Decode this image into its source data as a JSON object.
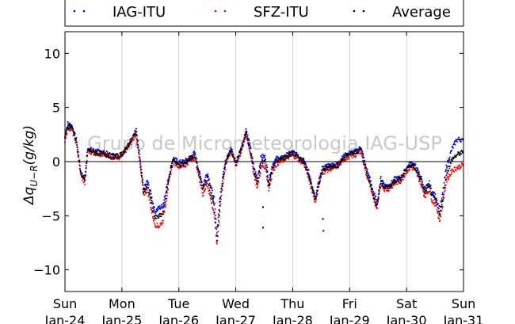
{
  "chart_data": {
    "type": "scatter",
    "title": "",
    "ylabel": "Δq_{U−R}(g/kg)",
    "ylabel_main": "Δq",
    "ylabel_sub": "U−R",
    "ylabel_unit": "(g/kg)",
    "xlabel": "",
    "ylim": [
      -12,
      12
    ],
    "yticks": [
      -10,
      -5,
      0,
      5,
      10
    ],
    "yticklabels": [
      "−10",
      "−5",
      "0",
      "5",
      "10"
    ],
    "xlim": [
      0,
      7
    ],
    "xticks": [
      {
        "x": 0,
        "day": "Sun",
        "date": "Jan-24"
      },
      {
        "x": 1,
        "day": "Mon",
        "date": "Jan-25"
      },
      {
        "x": 2,
        "day": "Tue",
        "date": "Jan-26"
      },
      {
        "x": 3,
        "day": "Wed",
        "date": "Jan-27"
      },
      {
        "x": 4,
        "day": "Thu",
        "date": "Jan-28"
      },
      {
        "x": 5,
        "day": "Fri",
        "date": "Jan-29"
      },
      {
        "x": 6,
        "day": "Sat",
        "date": "Jan-30"
      },
      {
        "x": 7,
        "day": "Sun",
        "date": "Jan-31"
      }
    ],
    "grid": "vertical",
    "legend_position": "top",
    "watermark": "Grupo de Micrometeorologia IAG-USP",
    "zero_line": true,
    "series": [
      {
        "name": "IAG-ITU",
        "color": "#0000ff",
        "points": [
          [
            0.0,
            2.4
          ],
          [
            0.05,
            3.5
          ],
          [
            0.12,
            3.3
          ],
          [
            0.2,
            2.0
          ],
          [
            0.28,
            -1.0
          ],
          [
            0.35,
            -1.6
          ],
          [
            0.4,
            1.2
          ],
          [
            0.5,
            1.0
          ],
          [
            0.6,
            0.9
          ],
          [
            0.7,
            0.8
          ],
          [
            0.8,
            0.6
          ],
          [
            0.95,
            0.5
          ],
          [
            1.05,
            1.0
          ],
          [
            1.15,
            1.9
          ],
          [
            1.25,
            2.9
          ],
          [
            1.32,
            0.2
          ],
          [
            1.38,
            -2.6
          ],
          [
            1.45,
            -1.8
          ],
          [
            1.52,
            -3.2
          ],
          [
            1.58,
            -4.6
          ],
          [
            1.65,
            -4.3
          ],
          [
            1.72,
            -4.1
          ],
          [
            1.78,
            -2.5
          ],
          [
            1.84,
            -1.0
          ],
          [
            1.9,
            0.3
          ],
          [
            2.0,
            -0.1
          ],
          [
            2.1,
            0.0
          ],
          [
            2.2,
            0.4
          ],
          [
            2.28,
            0.8
          ],
          [
            2.35,
            -0.8
          ],
          [
            2.42,
            -2.2
          ],
          [
            2.5,
            -1.0
          ],
          [
            2.55,
            -2.0
          ],
          [
            2.62,
            -3.5
          ],
          [
            2.67,
            -6.5
          ],
          [
            2.72,
            -3.5
          ],
          [
            2.78,
            -1.0
          ],
          [
            2.85,
            0.6
          ],
          [
            2.92,
            1.2
          ],
          [
            3.0,
            -0.1
          ],
          [
            3.08,
            1.0
          ],
          [
            3.15,
            2.2
          ],
          [
            3.18,
            3.0
          ],
          [
            3.25,
            1.5
          ],
          [
            3.32,
            -0.6
          ],
          [
            3.38,
            -1.6
          ],
          [
            3.45,
            0.5
          ],
          [
            3.52,
            0.4
          ],
          [
            3.58,
            -1.8
          ],
          [
            3.65,
            -0.2
          ],
          [
            3.72,
            0.3
          ],
          [
            3.8,
            0.3
          ],
          [
            3.9,
            0.6
          ],
          [
            4.0,
            0.9
          ],
          [
            4.1,
            0.5
          ],
          [
            4.2,
            0.2
          ],
          [
            4.28,
            -1.0
          ],
          [
            4.35,
            -2.5
          ],
          [
            4.4,
            -3.4
          ],
          [
            4.45,
            -2.0
          ],
          [
            4.52,
            -0.7
          ],
          [
            4.6,
            -0.4
          ],
          [
            4.7,
            -0.3
          ],
          [
            4.8,
            -0.2
          ],
          [
            4.9,
            0.5
          ],
          [
            5.0,
            0.8
          ],
          [
            5.1,
            0.9
          ],
          [
            5.2,
            1.3
          ],
          [
            5.28,
            -0.4
          ],
          [
            5.35,
            -1.5
          ],
          [
            5.4,
            -2.5
          ],
          [
            5.48,
            -3.8
          ],
          [
            5.55,
            -1.5
          ],
          [
            5.62,
            -2.2
          ],
          [
            5.7,
            -2.2
          ],
          [
            5.8,
            -1.6
          ],
          [
            5.9,
            -1.5
          ],
          [
            6.0,
            -0.6
          ],
          [
            6.08,
            -0.1
          ],
          [
            6.15,
            -0.4
          ],
          [
            6.25,
            -1.4
          ],
          [
            6.32,
            -2.6
          ],
          [
            6.4,
            -2.0
          ],
          [
            6.45,
            -2.8
          ],
          [
            6.52,
            -3.3
          ],
          [
            6.58,
            -4.4
          ],
          [
            6.62,
            -3.5
          ],
          [
            6.7,
            -0.5
          ],
          [
            6.8,
            1.2
          ],
          [
            6.88,
            2.0
          ],
          [
            6.95,
            2.1
          ],
          [
            7.0,
            1.8
          ]
        ]
      },
      {
        "name": "SFZ-ITU",
        "color": "#ff0000",
        "points": [
          [
            0.0,
            2.0
          ],
          [
            0.05,
            3.1
          ],
          [
            0.12,
            3.0
          ],
          [
            0.2,
            1.7
          ],
          [
            0.28,
            -1.3
          ],
          [
            0.35,
            -2.0
          ],
          [
            0.4,
            1.0
          ],
          [
            0.5,
            0.8
          ],
          [
            0.6,
            0.7
          ],
          [
            0.7,
            0.6
          ],
          [
            0.8,
            0.4
          ],
          [
            0.95,
            0.4
          ],
          [
            1.05,
            0.9
          ],
          [
            1.15,
            1.7
          ],
          [
            1.25,
            2.6
          ],
          [
            1.32,
            -0.3
          ],
          [
            1.38,
            -3.0
          ],
          [
            1.45,
            -2.6
          ],
          [
            1.52,
            -4.5
          ],
          [
            1.58,
            -5.8
          ],
          [
            1.65,
            -6.0
          ],
          [
            1.72,
            -5.5
          ],
          [
            1.78,
            -3.5
          ],
          [
            1.84,
            -1.5
          ],
          [
            1.9,
            0.0
          ],
          [
            2.0,
            -0.4
          ],
          [
            2.1,
            -0.4
          ],
          [
            2.2,
            0.1
          ],
          [
            2.28,
            0.4
          ],
          [
            2.35,
            -1.3
          ],
          [
            2.42,
            -3.0
          ],
          [
            2.5,
            -2.0
          ],
          [
            2.55,
            -3.2
          ],
          [
            2.62,
            -4.8
          ],
          [
            2.67,
            -7.8
          ],
          [
            2.72,
            -4.5
          ],
          [
            2.78,
            -1.8
          ],
          [
            2.85,
            0.3
          ],
          [
            2.92,
            0.9
          ],
          [
            3.0,
            -0.4
          ],
          [
            3.08,
            0.7
          ],
          [
            3.15,
            1.9
          ],
          [
            3.18,
            2.6
          ],
          [
            3.25,
            1.0
          ],
          [
            3.32,
            -1.2
          ],
          [
            3.38,
            -2.4
          ],
          [
            3.45,
            -0.5
          ],
          [
            3.52,
            -0.4
          ],
          [
            3.58,
            -2.6
          ],
          [
            3.65,
            -0.8
          ],
          [
            3.72,
            -0.2
          ],
          [
            3.8,
            0.0
          ],
          [
            3.9,
            0.3
          ],
          [
            4.0,
            0.6
          ],
          [
            4.1,
            0.2
          ],
          [
            4.2,
            -0.2
          ],
          [
            4.28,
            -1.5
          ],
          [
            4.35,
            -2.8
          ],
          [
            4.4,
            -3.8
          ],
          [
            4.45,
            -2.4
          ],
          [
            4.52,
            -1.0
          ],
          [
            4.6,
            -0.8
          ],
          [
            4.7,
            -0.6
          ],
          [
            4.8,
            -0.4
          ],
          [
            4.9,
            0.2
          ],
          [
            5.0,
            0.5
          ],
          [
            5.1,
            0.6
          ],
          [
            5.2,
            1.0
          ],
          [
            5.28,
            -0.9
          ],
          [
            5.35,
            -2.0
          ],
          [
            5.4,
            -3.0
          ],
          [
            5.48,
            -4.5
          ],
          [
            5.55,
            -2.0
          ],
          [
            5.62,
            -2.6
          ],
          [
            5.7,
            -2.5
          ],
          [
            5.8,
            -2.0
          ],
          [
            5.9,
            -1.8
          ],
          [
            6.0,
            -0.9
          ],
          [
            6.08,
            -0.5
          ],
          [
            6.15,
            -0.8
          ],
          [
            6.25,
            -2.0
          ],
          [
            6.32,
            -3.2
          ],
          [
            6.4,
            -2.6
          ],
          [
            6.45,
            -3.6
          ],
          [
            6.52,
            -4.0
          ],
          [
            6.58,
            -5.5
          ],
          [
            6.62,
            -4.5
          ],
          [
            6.7,
            -1.8
          ],
          [
            6.8,
            -0.8
          ],
          [
            6.88,
            -0.6
          ],
          [
            6.95,
            -0.4
          ],
          [
            7.0,
            -0.3
          ]
        ]
      },
      {
        "name": "Average",
        "color": "#000000",
        "points": [
          [
            0.0,
            2.2
          ],
          [
            0.05,
            3.3
          ],
          [
            0.12,
            3.2
          ],
          [
            0.2,
            1.9
          ],
          [
            0.28,
            -1.1
          ],
          [
            0.35,
            -1.8
          ],
          [
            0.4,
            1.1
          ],
          [
            0.5,
            0.9
          ],
          [
            0.6,
            0.8
          ],
          [
            0.7,
            0.7
          ],
          [
            0.8,
            0.5
          ],
          [
            0.95,
            0.5
          ],
          [
            1.05,
            1.0
          ],
          [
            1.15,
            1.8
          ],
          [
            1.25,
            2.8
          ],
          [
            1.32,
            -0.1
          ],
          [
            1.38,
            -2.8
          ],
          [
            1.45,
            -2.2
          ],
          [
            1.52,
            -3.8
          ],
          [
            1.58,
            -5.2
          ],
          [
            1.65,
            -5.1
          ],
          [
            1.72,
            -4.8
          ],
          [
            1.78,
            -3.0
          ],
          [
            1.84,
            -1.2
          ],
          [
            1.9,
            0.2
          ],
          [
            2.0,
            -0.3
          ],
          [
            2.1,
            -0.2
          ],
          [
            2.2,
            0.3
          ],
          [
            2.28,
            0.6
          ],
          [
            2.35,
            -1.0
          ],
          [
            2.42,
            -2.6
          ],
          [
            2.5,
            -1.5
          ],
          [
            2.55,
            -2.6
          ],
          [
            2.62,
            -4.1
          ],
          [
            2.67,
            -7.1
          ],
          [
            2.72,
            -4.0
          ],
          [
            2.78,
            -1.4
          ],
          [
            2.85,
            0.5
          ],
          [
            2.92,
            1.0
          ],
          [
            3.0,
            -0.2
          ],
          [
            3.08,
            0.9
          ],
          [
            3.15,
            2.0
          ],
          [
            3.18,
            2.8
          ],
          [
            3.25,
            1.2
          ],
          [
            3.32,
            -0.9
          ],
          [
            3.38,
            -2.0
          ],
          [
            3.45,
            0.0
          ],
          [
            3.52,
            0.0
          ],
          [
            3.58,
            -2.2
          ],
          [
            3.65,
            -0.5
          ],
          [
            3.72,
            0.1
          ],
          [
            3.8,
            0.2
          ],
          [
            3.9,
            0.5
          ],
          [
            4.0,
            0.8
          ],
          [
            4.1,
            0.4
          ],
          [
            4.2,
            0.0
          ],
          [
            4.28,
            -1.2
          ],
          [
            4.35,
            -2.6
          ],
          [
            4.4,
            -3.6
          ],
          [
            4.45,
            -2.2
          ],
          [
            4.52,
            -0.8
          ],
          [
            4.6,
            -0.6
          ],
          [
            4.7,
            -0.4
          ],
          [
            4.8,
            -0.3
          ],
          [
            4.9,
            0.4
          ],
          [
            5.0,
            0.7
          ],
          [
            5.1,
            0.8
          ],
          [
            5.2,
            1.2
          ],
          [
            5.28,
            -0.6
          ],
          [
            5.35,
            -1.8
          ],
          [
            5.4,
            -2.8
          ],
          [
            5.48,
            -4.1
          ],
          [
            5.55,
            -1.8
          ],
          [
            5.62,
            -2.4
          ],
          [
            5.7,
            -2.3
          ],
          [
            5.8,
            -1.8
          ],
          [
            5.9,
            -1.6
          ],
          [
            6.0,
            -0.7
          ],
          [
            6.08,
            -0.3
          ],
          [
            6.15,
            -0.6
          ],
          [
            6.25,
            -1.7
          ],
          [
            6.32,
            -2.9
          ],
          [
            6.4,
            -2.3
          ],
          [
            6.45,
            -3.2
          ],
          [
            6.52,
            -3.6
          ],
          [
            6.58,
            -4.9
          ],
          [
            6.62,
            -4.0
          ],
          [
            6.7,
            -1.2
          ],
          [
            6.8,
            0.2
          ],
          [
            6.88,
            0.6
          ],
          [
            6.95,
            0.8
          ],
          [
            7.0,
            0.8
          ]
        ]
      }
    ],
    "outliers": [
      {
        "series": "Average",
        "x": 3.48,
        "y": -4.2
      },
      {
        "series": "IAG-ITU",
        "x": 3.48,
        "y": -6.1
      },
      {
        "series": "Average",
        "x": 4.53,
        "y": -5.3
      },
      {
        "series": "IAG-ITU",
        "x": 4.54,
        "y": -6.4
      }
    ]
  }
}
